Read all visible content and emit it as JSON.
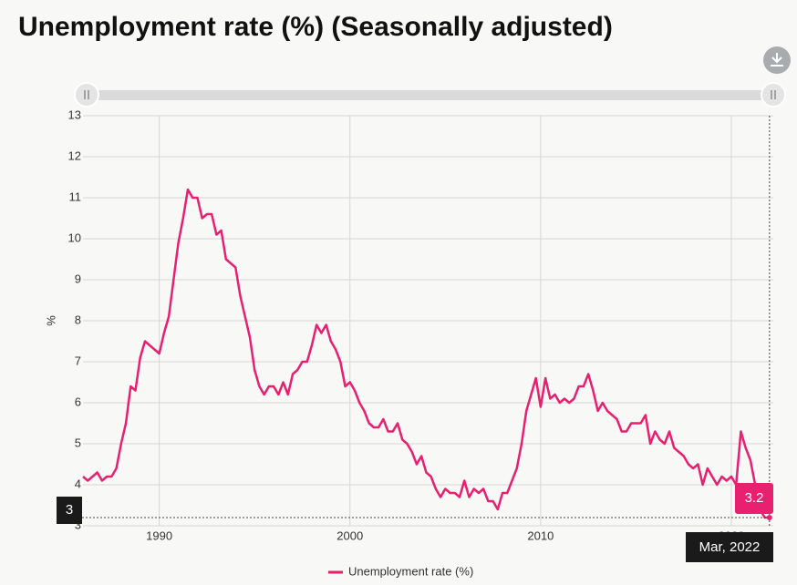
{
  "chart_data": {
    "type": "line",
    "title": "Unemployment rate (%) (Seasonally adjusted)",
    "ylabel": "%",
    "xlim": [
      1986,
      2022.2
    ],
    "xticks": [
      1990,
      2000,
      2010,
      2020
    ],
    "ylim": [
      3,
      13
    ],
    "yticks": [
      3,
      4,
      5,
      6,
      7,
      8,
      9,
      10,
      11,
      12,
      13
    ],
    "grid": true,
    "legend": "bottom",
    "x": [
      1986,
      1986.25,
      1986.5,
      1986.75,
      1987,
      1987.25,
      1987.5,
      1987.75,
      1988,
      1988.25,
      1988.5,
      1988.75,
      1989,
      1989.25,
      1989.5,
      1989.75,
      1990,
      1990.25,
      1990.5,
      1990.75,
      1991,
      1991.25,
      1991.5,
      1991.75,
      1992,
      1992.25,
      1992.5,
      1992.75,
      1993,
      1993.25,
      1993.5,
      1993.75,
      1994,
      1994.25,
      1994.5,
      1994.75,
      1995,
      1995.25,
      1995.5,
      1995.75,
      1996,
      1996.25,
      1996.5,
      1996.75,
      1997,
      1997.25,
      1997.5,
      1997.75,
      1998,
      1998.25,
      1998.5,
      1998.75,
      1999,
      1999.25,
      1999.5,
      1999.75,
      2000,
      2000.25,
      2000.5,
      2000.75,
      2001,
      2001.25,
      2001.5,
      2001.75,
      2002,
      2002.25,
      2002.5,
      2002.75,
      2003,
      2003.25,
      2003.5,
      2003.75,
      2004,
      2004.25,
      2004.5,
      2004.75,
      2005,
      2005.25,
      2005.5,
      2005.75,
      2006,
      2006.25,
      2006.5,
      2006.75,
      2007,
      2007.25,
      2007.5,
      2007.75,
      2008,
      2008.25,
      2008.5,
      2008.75,
      2009,
      2009.25,
      2009.5,
      2009.75,
      2010,
      2010.25,
      2010.5,
      2010.75,
      2011,
      2011.25,
      2011.5,
      2011.75,
      2012,
      2012.25,
      2012.5,
      2012.75,
      2013,
      2013.25,
      2013.5,
      2013.75,
      2014,
      2014.25,
      2014.5,
      2014.75,
      2015,
      2015.25,
      2015.5,
      2015.75,
      2016,
      2016.25,
      2016.5,
      2016.75,
      2017,
      2017.25,
      2017.5,
      2017.75,
      2018,
      2018.25,
      2018.5,
      2018.75,
      2019,
      2019.25,
      2019.5,
      2019.75,
      2020,
      2020.25,
      2020.5,
      2020.75,
      2021,
      2021.25,
      2021.5,
      2021.75,
      2022
    ],
    "series": [
      {
        "name": "Unemployment rate (%)",
        "color": "#e8206f",
        "values": [
          4.2,
          4.1,
          4.2,
          4.3,
          4.1,
          4.2,
          4.2,
          4.4,
          5.0,
          5.5,
          6.4,
          6.3,
          7.1,
          7.5,
          7.4,
          7.3,
          7.2,
          7.7,
          8.1,
          9.0,
          9.9,
          10.5,
          11.2,
          11.0,
          11.0,
          10.5,
          10.6,
          10.6,
          10.1,
          10.2,
          9.5,
          9.4,
          9.3,
          8.6,
          8.1,
          7.6,
          6.8,
          6.4,
          6.2,
          6.4,
          6.4,
          6.2,
          6.5,
          6.2,
          6.7,
          6.8,
          7.0,
          7.0,
          7.4,
          7.9,
          7.7,
          7.9,
          7.5,
          7.3,
          7.0,
          6.4,
          6.5,
          6.3,
          6.0,
          5.8,
          5.5,
          5.4,
          5.4,
          5.6,
          5.3,
          5.3,
          5.5,
          5.1,
          5.0,
          4.8,
          4.5,
          4.7,
          4.3,
          4.2,
          3.9,
          3.7,
          3.9,
          3.8,
          3.8,
          3.7,
          4.1,
          3.7,
          3.9,
          3.8,
          3.9,
          3.6,
          3.6,
          3.4,
          3.8,
          3.8,
          4.1,
          4.4,
          5.0,
          5.8,
          6.2,
          6.6,
          5.9,
          6.6,
          6.1,
          6.2,
          6.0,
          6.1,
          6.0,
          6.1,
          6.4,
          6.4,
          6.7,
          6.3,
          5.8,
          6.0,
          5.8,
          5.7,
          5.6,
          5.3,
          5.3,
          5.5,
          5.5,
          5.5,
          5.7,
          5.0,
          5.3,
          5.1,
          5.0,
          5.3,
          4.9,
          4.8,
          4.7,
          4.5,
          4.4,
          4.5,
          4.0,
          4.4,
          4.2,
          4.0,
          4.2,
          4.1,
          4.2,
          4.0,
          5.3,
          4.9,
          4.6,
          4.0,
          3.4,
          3.2,
          3.2
        ]
      }
    ],
    "tooltip": {
      "date": "Mar, 2022",
      "value": 3.2,
      "axis_label": "3"
    }
  }
}
